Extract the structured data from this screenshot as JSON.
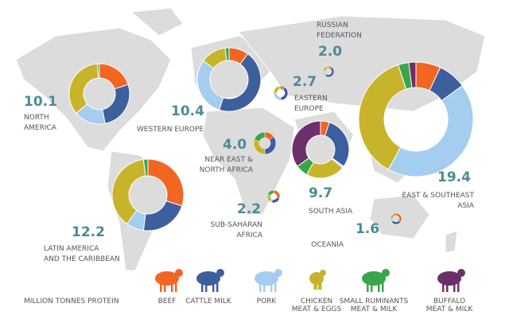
{
  "chart_data": [
    {
      "type": "donut",
      "title": [
        "NORTH",
        "AMERICA"
      ],
      "total": 10.1,
      "values": [
        20,
        27,
        17,
        35,
        1,
        0
      ]
    },
    {
      "type": "donut",
      "title": [
        "WESTERN EUROPE"
      ],
      "total": 10.4,
      "values": [
        10,
        45,
        30,
        13,
        2,
        0
      ]
    },
    {
      "type": "donut",
      "title": [
        "RUSSIAN",
        "FEDERATION"
      ],
      "total": {
        "value": 2,
        "label": "2.0"
      },
      "values": [
        10,
        50,
        15,
        22,
        3,
        0
      ]
    },
    {
      "type": "donut",
      "title": [
        "EASTERN",
        "EUROPE"
      ],
      "total": 2.7,
      "values": [
        10,
        40,
        25,
        22,
        3,
        0
      ]
    },
    {
      "type": "donut",
      "title": [
        "EAST & SOUTHEAST",
        "ASIA"
      ],
      "total": 19.4,
      "values": [
        7,
        8,
        43,
        37,
        3,
        2
      ]
    },
    {
      "type": "donut",
      "title": [
        "NEAR EAST &",
        "NORTH AFRICA"
      ],
      "total": {
        "value": 4,
        "label": "4.0"
      },
      "values": [
        15,
        35,
        0,
        30,
        20,
        0
      ]
    },
    {
      "type": "donut",
      "title": [
        "SOUTH ASIA"
      ],
      "total": 9.7,
      "values": [
        5,
        30,
        1,
        22,
        7,
        35
      ]
    },
    {
      "type": "donut",
      "title": [
        "LATIN AMERICA",
        "AND THE CARIBBEAN"
      ],
      "total": 12.2,
      "values": [
        30,
        22,
        8,
        38,
        2,
        0
      ]
    },
    {
      "type": "donut",
      "title": [
        "SUB-SAHARAN",
        "AFRICA"
      ],
      "total": 2.2,
      "values": [
        30,
        25,
        5,
        20,
        20,
        0
      ]
    },
    {
      "type": "donut",
      "title": [
        "OCEANIA"
      ],
      "total": 1.6,
      "values": [
        35,
        30,
        7,
        20,
        8,
        0
      ]
    }
  ],
  "unit": "MILLION TONNES PROTEIN",
  "legend": {
    "items": [
      {
        "name": "BEEF",
        "color": "#f26522"
      },
      {
        "name": "CATTLE MILK",
        "color": "#3e5f9e"
      },
      {
        "name": "PORK",
        "color": "#a5cdf0"
      },
      {
        "name": "CHICKEN",
        "sub": "MEAT & EGGS",
        "color": "#c8b42a"
      },
      {
        "name": "SMALL RUMINANTS",
        "sub": "MEAT & MILK",
        "color": "#3aa54a"
      },
      {
        "name": "BUFFALO",
        "sub": "MEAT & MILK",
        "color": "#6d2f6a"
      }
    ]
  }
}
